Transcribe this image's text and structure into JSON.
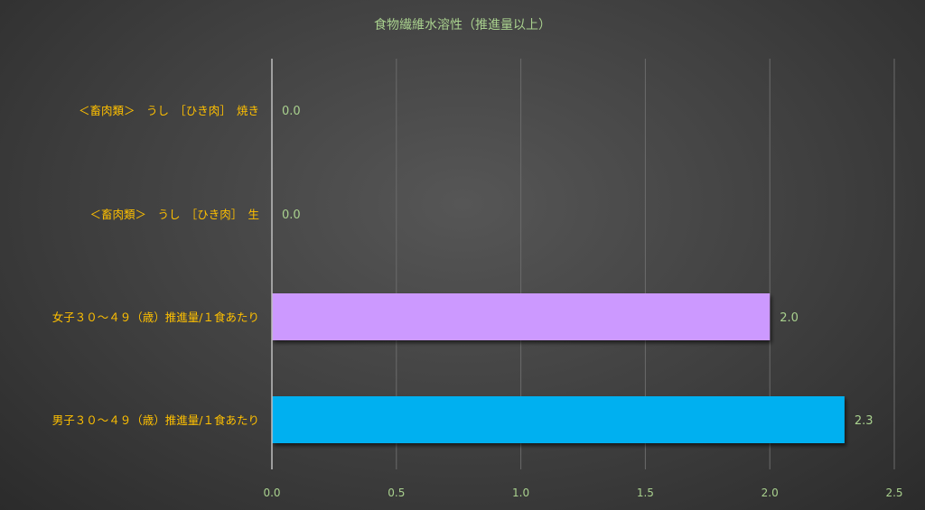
{
  "chart_data": {
    "type": "bar",
    "orientation": "horizontal",
    "title": "食物繊維水溶性（推進量以上）",
    "categories": [
      "＜畜肉類＞　うし　［ひき肉］　焼き",
      "＜畜肉類＞　うし　［ひき肉］　生",
      "女子３０～４９（歳）推進量/１食あたり",
      "男子３０～４９（歳）推進量/１食あたり"
    ],
    "values": [
      0.0,
      0.0,
      2.0,
      2.3
    ],
    "value_labels": [
      "0.0",
      "0.0",
      "2.0",
      "2.3"
    ],
    "bar_colors": [
      "#00b0f0",
      "#00b0f0",
      "#cc99ff",
      "#00b0f0"
    ],
    "xlim": [
      0,
      2.5
    ],
    "xticks": [
      "0.0",
      "0.5",
      "1.0",
      "1.5",
      "2.0",
      "2.5"
    ],
    "grid": true,
    "legend": "none"
  }
}
